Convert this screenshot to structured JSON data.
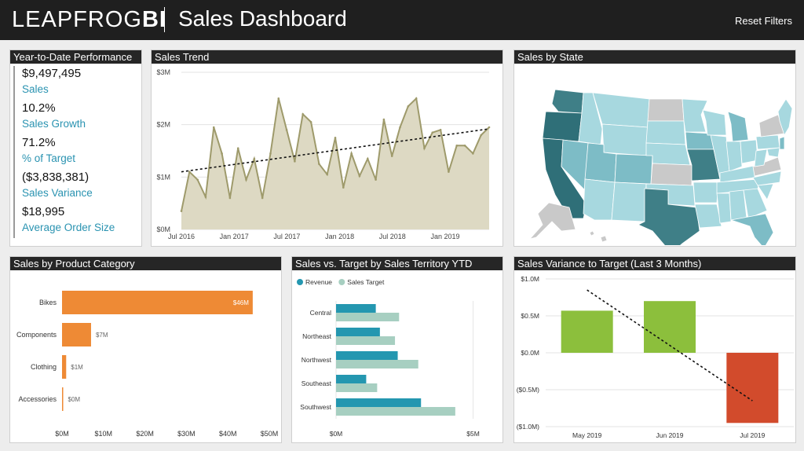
{
  "header": {
    "logo_light": "LEAPFROG",
    "logo_bold": "BI",
    "title": "Sales Dashboard",
    "reset_label": "Reset Filters"
  },
  "colors": {
    "teal": "#2497b0",
    "light_teal": "#a7cfc1",
    "orange": "#ee8a35",
    "green": "#8cbf3c",
    "red": "#d24b2c",
    "khaki": "#ddd9c3",
    "khaki_line": "#9e9a6b",
    "state_dark": "#3f7f87",
    "state_mid": "#7dbcc6",
    "state_light": "#a7d8df",
    "state_gray": "#c9c9c9"
  },
  "ytd": {
    "title": "Year-to-Date Performance",
    "items": [
      {
        "value": "$9,497,495",
        "label": "Sales"
      },
      {
        "value": "10.2%",
        "label": "Sales Growth"
      },
      {
        "value": "71.2%",
        "label": "% of Target"
      },
      {
        "value": "($3,838,381)",
        "label": "Sales Variance"
      },
      {
        "value": "$18,995",
        "label": "Average Order Size"
      }
    ]
  },
  "sales_trend": {
    "title": "Sales Trend"
  },
  "sales_by_state": {
    "title": "Sales by State"
  },
  "product_category": {
    "title": "Sales by Product Category"
  },
  "territory": {
    "title": "Sales vs. Target by Sales Territory YTD"
  },
  "variance": {
    "title": "Sales Variance to Target (Last 3 Months)"
  },
  "chart_data": [
    {
      "type": "area",
      "title": "Sales Trend",
      "y_ticks": [
        "$0M",
        "$1M",
        "$2M",
        "$3M"
      ],
      "ylim": [
        0,
        3
      ],
      "x_ticks": [
        "Jul 2016",
        "Jan 2017",
        "Jul 2017",
        "Jan 2018",
        "Jul 2018",
        "Jan 2019"
      ],
      "x_tick_months": [
        0,
        6,
        12,
        18,
        24,
        30
      ],
      "x_range_months": [
        0,
        35
      ],
      "values": [
        0.35,
        1.1,
        0.95,
        0.62,
        1.95,
        1.45,
        0.6,
        1.55,
        0.95,
        1.35,
        0.6,
        1.45,
        2.5,
        1.9,
        1.3,
        2.2,
        2.05,
        1.25,
        1.05,
        1.75,
        0.8,
        1.45,
        1.02,
        1.35,
        0.95,
        2.1,
        1.4,
        1.95,
        2.35,
        2.5,
        1.55,
        1.85,
        1.9,
        1.1,
        1.6,
        1.6,
        1.45,
        1.8,
        1.95
      ],
      "trendline": {
        "start": 1.1,
        "end": 1.92
      },
      "grid": true
    },
    {
      "type": "bar",
      "title": "Sales by Product Category",
      "categories": [
        "Bikes",
        "Components",
        "Clothing",
        "Accessories"
      ],
      "values": [
        46,
        7,
        1,
        0
      ],
      "value_labels": [
        "$46M",
        "$7M",
        "$1M",
        "$0M"
      ],
      "x_ticks": [
        "$0M",
        "$10M",
        "$20M",
        "$30M",
        "$40M",
        "$50M"
      ],
      "xlim": [
        0,
        50
      ]
    },
    {
      "type": "bar",
      "title": "Sales vs. Target by Sales Territory YTD",
      "categories": [
        "Central",
        "Northeast",
        "Northwest",
        "Southeast",
        "Southwest"
      ],
      "series": [
        {
          "name": "Revenue",
          "values": [
            1.45,
            1.6,
            2.25,
            1.1,
            3.1
          ]
        },
        {
          "name": "Sales Target",
          "values": [
            2.3,
            2.15,
            3.0,
            1.5,
            4.35
          ]
        }
      ],
      "x_ticks": [
        "$0M",
        "$5M"
      ],
      "xlim": [
        0,
        5.5
      ],
      "legend": "top-left"
    },
    {
      "type": "bar",
      "title": "Sales Variance to Target (Last 3 Months)",
      "categories": [
        "May 2019",
        "Jun 2019",
        "Jul 2019"
      ],
      "values": [
        0.57,
        0.7,
        -0.95
      ],
      "y_ticks": [
        "$1.0M",
        "$0.5M",
        "$0.0M",
        "($0.5M)",
        "($1.0M)"
      ],
      "ylim": [
        -1.0,
        1.0
      ],
      "trendline": {
        "start": 0.85,
        "end": -0.65
      }
    }
  ]
}
